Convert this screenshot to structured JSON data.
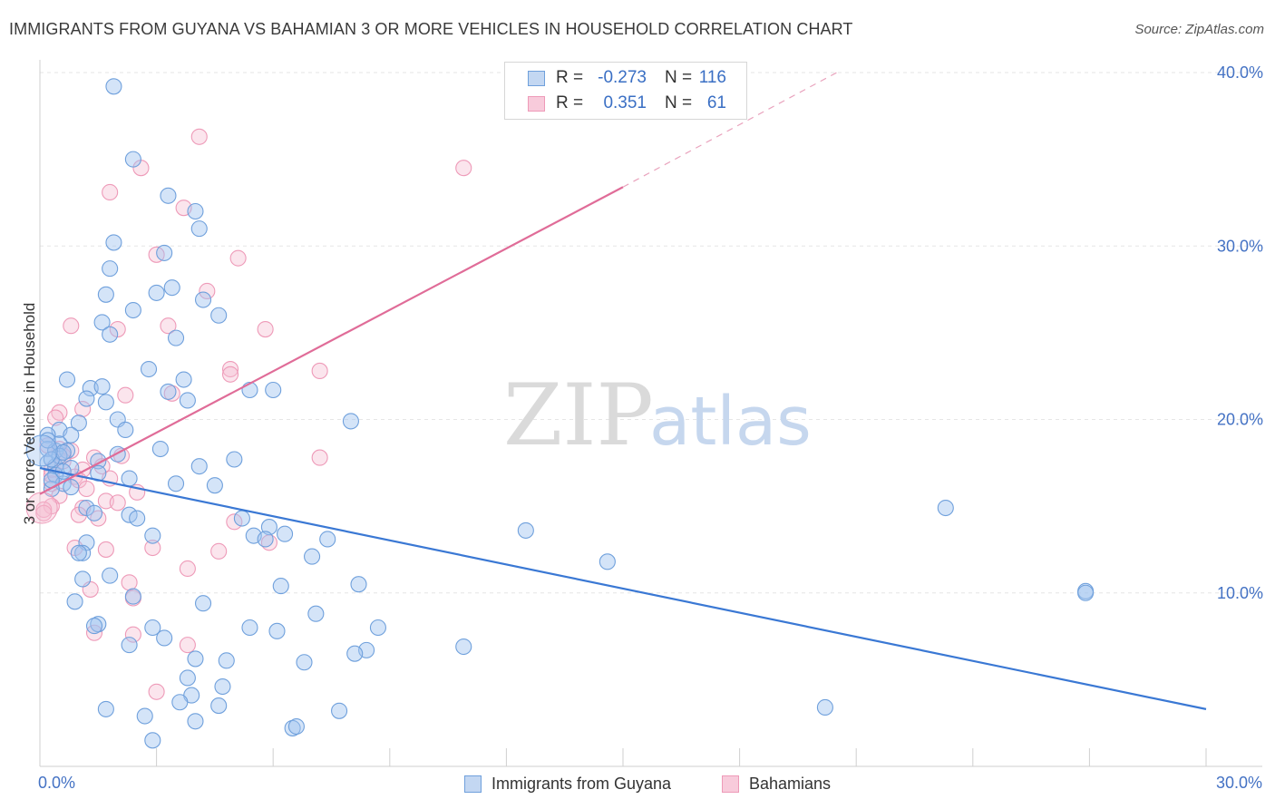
{
  "header": {
    "title": "IMMIGRANTS FROM GUYANA VS BAHAMIAN 3 OR MORE VEHICLES IN HOUSEHOLD CORRELATION CHART",
    "source": "Source: ZipAtlas.com"
  },
  "watermark": {
    "zip": "ZIP",
    "atlas": "atlas"
  },
  "stats": [
    {
      "r_label": "R =",
      "r_value": "-0.273",
      "n_label": "N =",
      "n_value": "116",
      "color": "#6fa0dc"
    },
    {
      "r_label": "R =",
      "r_value": "0.351",
      "n_label": "N =",
      "n_value": "61",
      "color": "#ee9ab8"
    }
  ],
  "legend": [
    {
      "label": "Immigrants from Guyana",
      "color": "#6fa0dc"
    },
    {
      "label": "Bahamians",
      "color": "#ee9ab8"
    }
  ],
  "chart_data": {
    "type": "scatter",
    "xlabel": "",
    "ylabel": "3 or more Vehicles in Household",
    "xlim": [
      0,
      30
    ],
    "ylim": [
      0,
      40
    ],
    "x_tick_labels": [
      {
        "value": 0,
        "label": "0.0%"
      },
      {
        "value": 30,
        "label": "30.0%"
      }
    ],
    "y_tick_labels": [
      {
        "value": 10,
        "label": "10.0%"
      },
      {
        "value": 20,
        "label": "20.0%"
      },
      {
        "value": 30,
        "label": "30.0%"
      },
      {
        "value": 40,
        "label": "40.0%"
      }
    ],
    "grid": true,
    "legend_position": "bottom-center",
    "series": [
      {
        "name": "Immigrants from Guyana",
        "color": "#6fa0dc",
        "trend": {
          "x": [
            0,
            30
          ],
          "y": [
            17.2,
            3.3
          ]
        },
        "points": [
          [
            1.9,
            39.2
          ],
          [
            2.4,
            35.0
          ],
          [
            3.3,
            32.9
          ],
          [
            4.0,
            32.0
          ],
          [
            4.1,
            31.0
          ],
          [
            1.9,
            30.2
          ],
          [
            3.2,
            29.6
          ],
          [
            1.8,
            28.7
          ],
          [
            3.0,
            27.3
          ],
          [
            1.7,
            27.2
          ],
          [
            3.4,
            27.6
          ],
          [
            4.2,
            26.9
          ],
          [
            2.4,
            26.3
          ],
          [
            4.6,
            26.0
          ],
          [
            1.6,
            25.6
          ],
          [
            1.8,
            24.9
          ],
          [
            3.5,
            24.7
          ],
          [
            2.8,
            22.9
          ],
          [
            0.7,
            22.3
          ],
          [
            1.3,
            21.8
          ],
          [
            1.6,
            21.9
          ],
          [
            3.7,
            22.3
          ],
          [
            3.3,
            21.6
          ],
          [
            5.4,
            21.7
          ],
          [
            6.0,
            21.7
          ],
          [
            1.2,
            21.2
          ],
          [
            1.7,
            21.0
          ],
          [
            3.8,
            21.1
          ],
          [
            2.0,
            20.0
          ],
          [
            8.0,
            19.9
          ],
          [
            1.0,
            19.8
          ],
          [
            0.5,
            19.4
          ],
          [
            0.2,
            19.1
          ],
          [
            2.2,
            19.4
          ],
          [
            0.8,
            19.1
          ],
          [
            0.2,
            18.3
          ],
          [
            0.4,
            18.2
          ],
          [
            0.5,
            18.6
          ],
          [
            0.7,
            18.2
          ],
          [
            3.1,
            18.3
          ],
          [
            2.0,
            18.0
          ],
          [
            0.2,
            17.5
          ],
          [
            0.4,
            17.3
          ],
          [
            1.5,
            17.6
          ],
          [
            5.0,
            17.7
          ],
          [
            4.1,
            17.3
          ],
          [
            0.8,
            17.2
          ],
          [
            1.5,
            16.9
          ],
          [
            0.4,
            16.8
          ],
          [
            2.3,
            16.6
          ],
          [
            0.6,
            16.3
          ],
          [
            0.8,
            16.1
          ],
          [
            3.5,
            16.3
          ],
          [
            4.5,
            16.2
          ],
          [
            0.3,
            16.0
          ],
          [
            1.2,
            14.9
          ],
          [
            1.4,
            14.6
          ],
          [
            2.3,
            14.5
          ],
          [
            2.5,
            14.3
          ],
          [
            5.2,
            14.3
          ],
          [
            5.9,
            13.8
          ],
          [
            12.5,
            13.6
          ],
          [
            2.9,
            13.3
          ],
          [
            5.5,
            13.3
          ],
          [
            5.8,
            13.1
          ],
          [
            6.3,
            13.4
          ],
          [
            7.4,
            13.1
          ],
          [
            1.2,
            12.9
          ],
          [
            1.1,
            12.3
          ],
          [
            1.0,
            12.3
          ],
          [
            7.0,
            12.1
          ],
          [
            14.6,
            11.8
          ],
          [
            1.8,
            11.0
          ],
          [
            1.1,
            10.8
          ],
          [
            6.2,
            10.4
          ],
          [
            8.2,
            10.5
          ],
          [
            2.4,
            9.8
          ],
          [
            0.9,
            9.5
          ],
          [
            4.2,
            9.4
          ],
          [
            26.9,
            10.1
          ],
          [
            7.1,
            8.8
          ],
          [
            1.5,
            8.2
          ],
          [
            1.4,
            8.1
          ],
          [
            2.9,
            8.0
          ],
          [
            5.4,
            8.0
          ],
          [
            6.1,
            7.8
          ],
          [
            8.7,
            8.0
          ],
          [
            3.2,
            7.4
          ],
          [
            2.3,
            7.0
          ],
          [
            10.9,
            6.9
          ],
          [
            8.4,
            6.7
          ],
          [
            8.1,
            6.5
          ],
          [
            4.0,
            6.2
          ],
          [
            4.8,
            6.1
          ],
          [
            6.8,
            6.0
          ],
          [
            3.8,
            5.1
          ],
          [
            4.7,
            4.6
          ],
          [
            3.9,
            4.1
          ],
          [
            3.6,
            3.7
          ],
          [
            1.7,
            3.3
          ],
          [
            4.6,
            3.5
          ],
          [
            7.7,
            3.2
          ],
          [
            20.2,
            3.4
          ],
          [
            2.7,
            2.9
          ],
          [
            4.0,
            2.6
          ],
          [
            6.5,
            2.2
          ],
          [
            6.6,
            2.3
          ],
          [
            2.9,
            1.5
          ],
          [
            26.9,
            10.0
          ],
          [
            23.3,
            14.9
          ],
          [
            0.3,
            16.5
          ],
          [
            0.5,
            17.9
          ],
          [
            0.3,
            17.7
          ],
          [
            0.6,
            17.0
          ],
          [
            0.2,
            18.8
          ],
          [
            0.6,
            18.1
          ]
        ]
      },
      {
        "name": "Bahamians",
        "color": "#ee9ab8",
        "trend": {
          "x": [
            0,
            15
          ],
          "y": [
            15.7,
            33.4
          ]
        },
        "trend_extension": {
          "x": [
            15,
            20.5
          ],
          "y": [
            33.4,
            40.0
          ]
        },
        "points": [
          [
            4.1,
            36.3
          ],
          [
            2.6,
            34.5
          ],
          [
            10.9,
            34.5
          ],
          [
            1.8,
            33.1
          ],
          [
            3.7,
            32.2
          ],
          [
            3.0,
            29.5
          ],
          [
            5.1,
            29.3
          ],
          [
            4.3,
            27.4
          ],
          [
            0.8,
            25.4
          ],
          [
            3.3,
            25.4
          ],
          [
            5.8,
            25.2
          ],
          [
            2.0,
            25.2
          ],
          [
            4.9,
            22.9
          ],
          [
            7.2,
            22.8
          ],
          [
            4.9,
            22.6
          ],
          [
            2.2,
            21.4
          ],
          [
            3.4,
            21.5
          ],
          [
            0.5,
            20.4
          ],
          [
            0.4,
            20.1
          ],
          [
            1.1,
            20.6
          ],
          [
            0.5,
            18.3
          ],
          [
            0.2,
            18.5
          ],
          [
            0.8,
            18.2
          ],
          [
            0.6,
            17.9
          ],
          [
            2.1,
            17.9
          ],
          [
            7.2,
            17.8
          ],
          [
            1.4,
            17.8
          ],
          [
            0.6,
            17.6
          ],
          [
            0.3,
            17.1
          ],
          [
            1.1,
            17.1
          ],
          [
            1.6,
            17.3
          ],
          [
            0.9,
            16.7
          ],
          [
            1.0,
            16.5
          ],
          [
            1.8,
            16.6
          ],
          [
            0.3,
            16.3
          ],
          [
            1.2,
            16.0
          ],
          [
            2.5,
            15.8
          ],
          [
            0.5,
            15.6
          ],
          [
            1.7,
            15.3
          ],
          [
            2.0,
            15.2
          ],
          [
            0.3,
            15.0
          ],
          [
            1.1,
            14.9
          ],
          [
            0.1,
            14.8
          ],
          [
            1.0,
            14.5
          ],
          [
            1.5,
            14.3
          ],
          [
            5.0,
            14.1
          ],
          [
            5.9,
            12.9
          ],
          [
            0.9,
            12.6
          ],
          [
            2.9,
            12.6
          ],
          [
            1.7,
            12.5
          ],
          [
            4.6,
            12.4
          ],
          [
            3.8,
            11.4
          ],
          [
            2.3,
            10.6
          ],
          [
            1.3,
            10.2
          ],
          [
            2.4,
            9.7
          ],
          [
            2.4,
            7.6
          ],
          [
            1.4,
            7.7
          ],
          [
            3.8,
            7.0
          ],
          [
            3.0,
            4.3
          ],
          [
            0.1,
            14.6
          ],
          [
            0.3,
            16.8
          ]
        ]
      }
    ]
  }
}
